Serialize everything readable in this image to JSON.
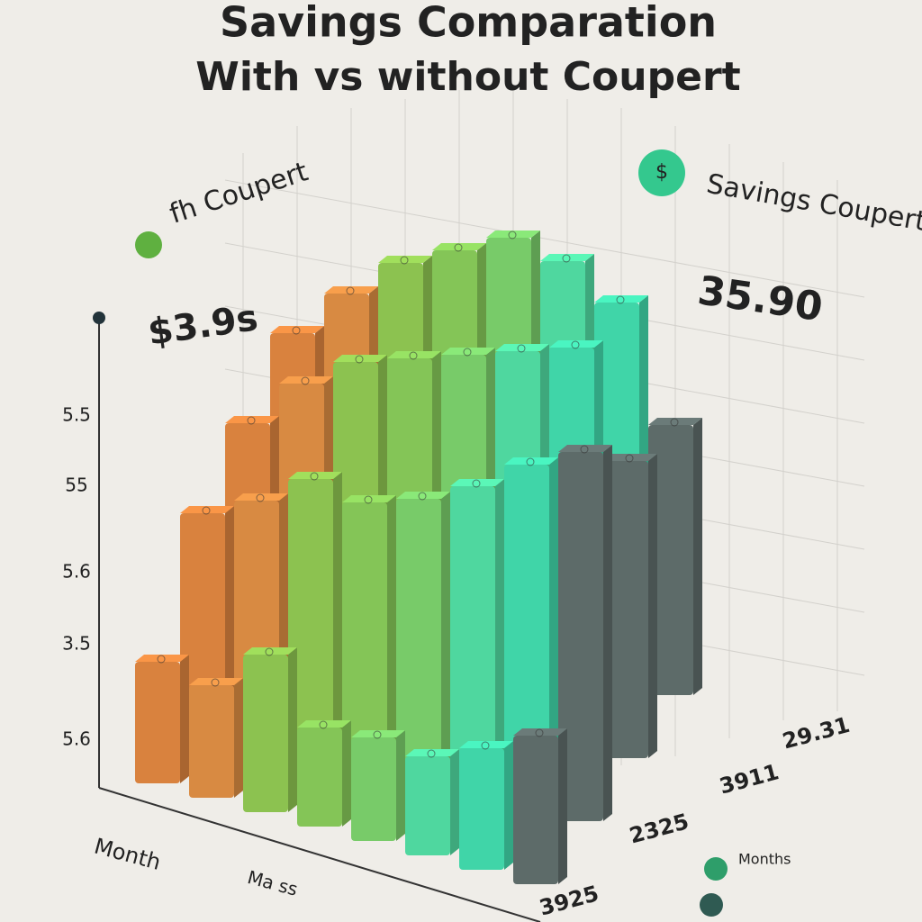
{
  "chart_data": {
    "type": "bar3d",
    "title": "Savings Comparation",
    "subtitle": "With vs without Coupert",
    "ylim": [
      0,
      100
    ],
    "colors": [
      "#d9823e",
      "#d88a42",
      "#8cc250",
      "#84c557",
      "#78cb69",
      "#4fd79f",
      "#40d5a8",
      "#5d6b69"
    ],
    "rows": [
      {
        "values": [
          58,
          70,
          80,
          86,
          92,
          90,
          84,
          60
        ]
      },
      {
        "values": [
          52,
          64,
          72,
          76,
          80,
          84,
          88,
          66
        ]
      },
      {
        "values": [
          46,
          52,
          60,
          58,
          62,
          68,
          76,
          82
        ]
      },
      {
        "values": [
          27,
          25,
          35,
          22,
          23,
          22,
          27,
          33
        ]
      }
    ],
    "y_axis_labels": [
      "5.5",
      "55",
      "5.6",
      "3.5",
      "5.6"
    ],
    "x_label": "Month",
    "x_sub_label": "Ma ss",
    "annotations": {
      "left_legend": "fh Coupert",
      "left_value": "$3.9s",
      "right_legend": "Savings Coupert",
      "right_icon": "$",
      "right_value": "35.90",
      "side_labels": [
        "29.31",
        "3911",
        "2325",
        "3925"
      ],
      "bottom_legend": "Months"
    }
  }
}
